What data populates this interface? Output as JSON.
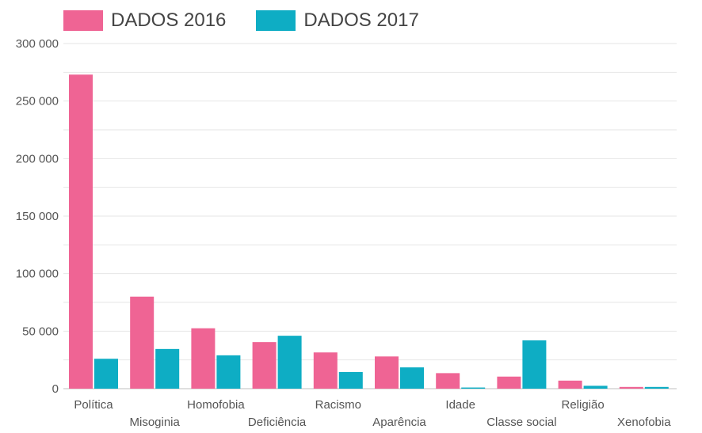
{
  "chart_data": {
    "type": "bar",
    "categories": [
      "Política",
      "Misoginia",
      "Homofobia",
      "Deficiência",
      "Racismo",
      "Aparência",
      "Idade",
      "Classe social",
      "Religião",
      "Xenofobia"
    ],
    "series": [
      {
        "name": "DADOS 2016",
        "color": "#EF6494",
        "values": [
          273000,
          80000,
          52500,
          40500,
          31500,
          28000,
          13500,
          10500,
          7000,
          1500
        ]
      },
      {
        "name": "DADOS 2017",
        "color": "#0EADC4",
        "values": [
          26000,
          34500,
          29000,
          46000,
          14500,
          18500,
          1000,
          42000,
          2500,
          1500
        ]
      }
    ],
    "yticks": [
      "0",
      "50 000",
      "100 000",
      "150 000",
      "200 000",
      "250 000",
      "300 000"
    ],
    "ylim": [
      0,
      300000
    ],
    "grid": true,
    "legend_position": "top-left"
  }
}
